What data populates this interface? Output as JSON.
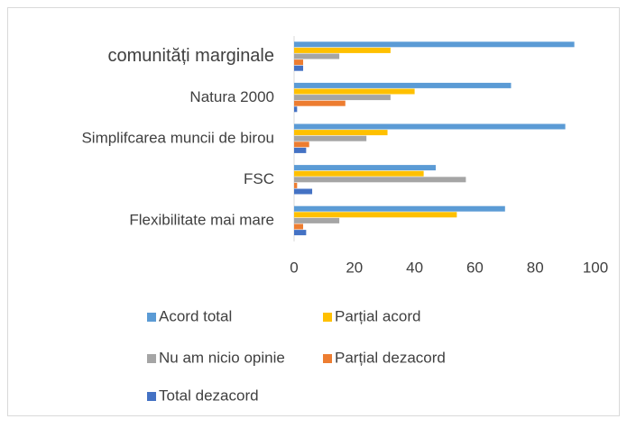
{
  "chart_data": {
    "type": "hbar",
    "categories": [
      "comunități marginale",
      "Natura 2000",
      "Simplifcarea muncii de birou",
      "FSC",
      "Flexibilitate mai mare"
    ],
    "series": [
      {
        "name": "Acord total",
        "color": "#5b9bd5",
        "values": [
          93,
          72,
          90,
          47,
          70
        ]
      },
      {
        "name": "Parțial acord",
        "color": "#ffc000",
        "values": [
          32,
          40,
          31,
          43,
          54
        ]
      },
      {
        "name": "Nu am nicio opinie",
        "color": "#a5a5a5",
        "values": [
          15,
          32,
          24,
          57,
          15
        ]
      },
      {
        "name": "Parțial dezacord",
        "color": "#ed7d31",
        "values": [
          3,
          17,
          5,
          1,
          3
        ]
      },
      {
        "name": "Total dezacord",
        "color": "#4472c4",
        "values": [
          3,
          1,
          4,
          6,
          4
        ]
      }
    ],
    "xlim": [
      0,
      100
    ],
    "xticks": [
      0,
      20,
      40,
      60,
      80,
      100
    ]
  }
}
